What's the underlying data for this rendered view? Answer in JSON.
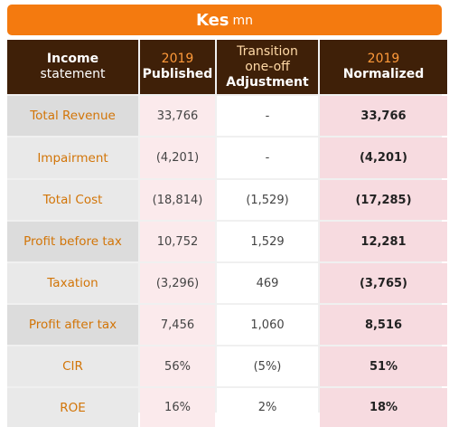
{
  "banner": {
    "bold": "Kes",
    "light": "mn"
  },
  "headers": {
    "col0": {
      "line1": "Income",
      "line2": "statement"
    },
    "col1": {
      "line1": "2019",
      "line2": "Published"
    },
    "col2": {
      "line1": "Transition",
      "line2": "one-off",
      "line3": "Adjustment"
    },
    "col3": {
      "line1": "2019",
      "line2": "Normalized"
    }
  },
  "rows": [
    {
      "label": "Total Revenue",
      "published": "33,766",
      "adjustment": "-",
      "normalized": "33,766"
    },
    {
      "label": "Impairment",
      "published": "(4,201)",
      "adjustment": "-",
      "normalized": "(4,201)"
    },
    {
      "label": "Total Cost",
      "published": "(18,814)",
      "adjustment": "(1,529)",
      "normalized": "(17,285)"
    },
    {
      "label": "Profit before tax",
      "published": "10,752",
      "adjustment": "1,529",
      "normalized": "12,281"
    },
    {
      "label": "Taxation",
      "published": "(3,296)",
      "adjustment": "469",
      "normalized": "(3,765)"
    },
    {
      "label": "Profit after tax",
      "published": "7,456",
      "adjustment": "1,060",
      "normalized": "8,516"
    },
    {
      "label": "CIR",
      "published": "56%",
      "adjustment": "(5%)",
      "normalized": "51%"
    },
    {
      "label": "ROE",
      "published": "16%",
      "adjustment": "2%",
      "normalized": "18%"
    }
  ],
  "colors": {
    "banner": "#f47a0f",
    "header_bg": "#3f2008",
    "label_text": "#d27508",
    "published_bg": "#fbeaec",
    "normalized_bg": "#f7dbe0"
  }
}
